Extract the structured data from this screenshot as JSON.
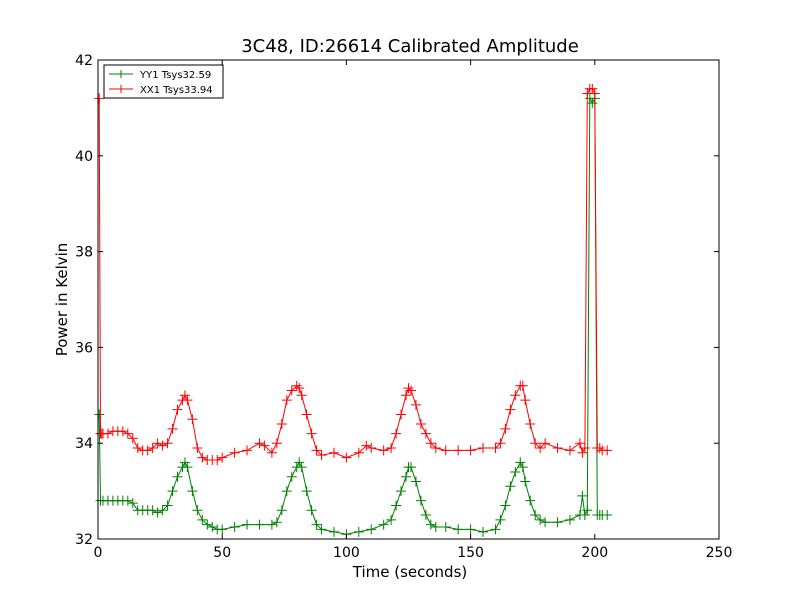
{
  "chart_data": {
    "type": "line",
    "title": "3C48, ID:26614 Calibrated Amplitude",
    "xlabel": "Time (seconds)",
    "ylabel": "Power in Kelvin",
    "xlim": [
      0,
      250
    ],
    "ylim": [
      32,
      42
    ],
    "xticks": [
      0,
      50,
      100,
      150,
      200,
      250
    ],
    "yticks": [
      32,
      34,
      36,
      38,
      40,
      42
    ],
    "grid": false,
    "legend_position": "top-left",
    "marker": "+",
    "series": [
      {
        "name": "YY1 Tsys32.59",
        "color": "#008000",
        "x": [
          0.5,
          1,
          2,
          4,
          6,
          8,
          10,
          12,
          14,
          16,
          18,
          20,
          22,
          24,
          26,
          28,
          30,
          32,
          34,
          35,
          36,
          38,
          40,
          42,
          44,
          46,
          48,
          50,
          55,
          60,
          65,
          70,
          72,
          74,
          76,
          78,
          80,
          81,
          82,
          84,
          86,
          88,
          90,
          95,
          100,
          105,
          110,
          115,
          118,
          120,
          122,
          124,
          125,
          126,
          128,
          130,
          132,
          134,
          136,
          140,
          145,
          150,
          155,
          160,
          162,
          164,
          166,
          168,
          170,
          171,
          172,
          174,
          176,
          178,
          180,
          185,
          190,
          194,
          195,
          196,
          197,
          198,
          199,
          200,
          201,
          202,
          203,
          205
        ],
        "y": [
          34.6,
          32.8,
          32.8,
          32.8,
          32.8,
          32.8,
          32.8,
          32.8,
          32.75,
          32.6,
          32.6,
          32.6,
          32.6,
          32.55,
          32.6,
          32.7,
          33.0,
          33.3,
          33.5,
          33.6,
          33.5,
          33.0,
          32.6,
          32.4,
          32.3,
          32.25,
          32.2,
          32.2,
          32.25,
          32.3,
          32.3,
          32.3,
          32.35,
          32.6,
          33.0,
          33.3,
          33.5,
          33.6,
          33.5,
          33.0,
          32.6,
          32.3,
          32.2,
          32.15,
          32.1,
          32.15,
          32.2,
          32.3,
          32.4,
          32.7,
          33.0,
          33.3,
          33.5,
          33.5,
          33.2,
          32.8,
          32.5,
          32.3,
          32.25,
          32.25,
          32.2,
          32.2,
          32.15,
          32.2,
          32.4,
          32.7,
          33.1,
          33.4,
          33.6,
          33.5,
          33.2,
          32.8,
          32.5,
          32.4,
          32.35,
          32.35,
          32.4,
          32.5,
          32.9,
          32.5,
          32.6,
          41.2,
          41.1,
          41.2,
          32.5,
          32.5,
          32.5,
          32.5
        ]
      },
      {
        "name": "XX1 Tsys33.94",
        "color": "#ff0000",
        "x": [
          0.5,
          1,
          1.5,
          2,
          4,
          6,
          8,
          10,
          12,
          14,
          16,
          18,
          20,
          22,
          24,
          26,
          28,
          30,
          32,
          34,
          35,
          36,
          38,
          40,
          42,
          44,
          46,
          48,
          50,
          55,
          60,
          65,
          67,
          70,
          72,
          74,
          76,
          78,
          80,
          81,
          82,
          84,
          86,
          88,
          90,
          95,
          100,
          105,
          108,
          110,
          115,
          118,
          120,
          122,
          124,
          125,
          126,
          128,
          130,
          132,
          134,
          136,
          140,
          145,
          150,
          155,
          160,
          162,
          164,
          166,
          168,
          170,
          171,
          172,
          174,
          176,
          178,
          180,
          185,
          190,
          194,
          195,
          196,
          197,
          198,
          199,
          200,
          201,
          202,
          203,
          205
        ],
        "y": [
          41.2,
          34.2,
          34.2,
          34.2,
          34.2,
          34.25,
          34.25,
          34.25,
          34.2,
          34.1,
          33.9,
          33.85,
          33.85,
          33.9,
          34.0,
          33.95,
          34.0,
          34.3,
          34.7,
          34.9,
          35.0,
          34.9,
          34.5,
          33.9,
          33.7,
          33.65,
          33.65,
          33.65,
          33.7,
          33.8,
          33.85,
          34.0,
          33.95,
          33.8,
          34.0,
          34.4,
          34.9,
          35.1,
          35.2,
          35.15,
          35.0,
          34.6,
          34.2,
          33.85,
          33.75,
          33.8,
          33.7,
          33.8,
          33.95,
          33.9,
          33.85,
          33.9,
          34.2,
          34.6,
          35.0,
          35.15,
          35.1,
          34.8,
          34.4,
          34.2,
          34.0,
          33.9,
          33.85,
          33.85,
          33.85,
          33.9,
          33.9,
          34.0,
          34.3,
          34.7,
          35.0,
          35.2,
          35.2,
          34.9,
          34.4,
          34.0,
          33.9,
          34.0,
          33.9,
          33.85,
          34.0,
          33.8,
          33.9,
          41.3,
          41.4,
          41.4,
          41.3,
          33.9,
          33.9,
          33.85,
          33.85
        ]
      }
    ]
  }
}
